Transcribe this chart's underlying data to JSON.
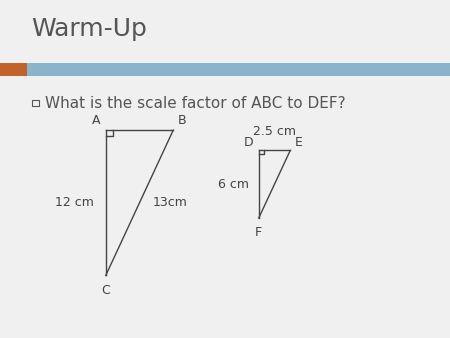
{
  "title": "Warm-Up",
  "question": "What is the scale factor of ABC to DEF?",
  "background_color": "#f0f0f0",
  "header_bar_color": "#8ab4cc",
  "accent_color": "#c0622a",
  "line_color": "#444444",
  "font_color": "#555555",
  "title_fontsize": 18,
  "question_fontsize": 11,
  "label_fontsize": 9,
  "measure_fontsize": 9,
  "ABC": {
    "A": [
      0.235,
      0.615
    ],
    "B": [
      0.385,
      0.615
    ],
    "C": [
      0.235,
      0.185
    ],
    "label_A": "A",
    "label_B": "B",
    "label_C": "C",
    "AC_label": "12 cm",
    "BC_label": "13cm"
  },
  "DEF": {
    "D": [
      0.575,
      0.555
    ],
    "E": [
      0.645,
      0.555
    ],
    "F": [
      0.575,
      0.355
    ],
    "label_D": "D",
    "label_E": "E",
    "label_F": "F",
    "DF_label": "6 cm",
    "DE_label": "2.5 cm"
  }
}
